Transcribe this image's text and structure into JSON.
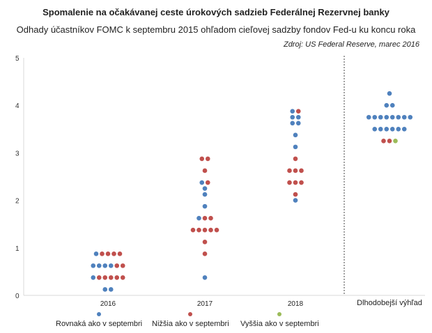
{
  "chart_data": {
    "type": "scatter",
    "title": "Spomalenie na očakávanej ceste úrokových sadzieb Federálnej Rezervnej banky",
    "subtitle": "Odhady účastníkov FOMC k septembru 2015 ohľadom cieľovej sadzby fondov Fed-u ku koncu roka",
    "source": "Zdroj: US Federal Reserve, marec 2016",
    "categories": [
      "2016",
      "2017",
      "2018",
      "Dlhodobejší výhľad"
    ],
    "ylim": [
      0,
      5
    ],
    "yticks": [
      "0",
      "1",
      "2",
      "3",
      "4",
      "5"
    ],
    "grid": false,
    "legend_position": "bottom",
    "colors": {
      "same": "#4f81bd",
      "lower": "#c0504d",
      "higher": "#9bbb59",
      "axis": "#d9d9d9",
      "divider": "#444444"
    },
    "series": [
      {
        "key": "same",
        "name": "Rovnaká ako v septembri",
        "color": "#4f81bd",
        "points": [
          [
            "2016",
            0.125
          ],
          [
            "2016",
            0.125
          ],
          [
            "2016",
            0.375
          ],
          [
            "2016",
            0.625
          ],
          [
            "2016",
            0.625
          ],
          [
            "2016",
            0.625
          ],
          [
            "2016",
            0.625
          ],
          [
            "2016",
            0.875
          ],
          [
            "2017",
            0.375
          ],
          [
            "2017",
            1.625
          ],
          [
            "2017",
            1.875
          ],
          [
            "2017",
            2.125
          ],
          [
            "2017",
            2.25
          ],
          [
            "2017",
            2.375
          ],
          [
            "2018",
            2.0
          ],
          [
            "2018",
            3.125
          ],
          [
            "2018",
            3.375
          ],
          [
            "2018",
            3.625
          ],
          [
            "2018",
            3.625
          ],
          [
            "2018",
            3.75
          ],
          [
            "2018",
            3.75
          ],
          [
            "2018",
            3.875
          ],
          [
            "Dlhodobejší výhľad",
            3.5
          ],
          [
            "Dlhodobejší výhľad",
            3.5
          ],
          [
            "Dlhodobejší výhľad",
            3.5
          ],
          [
            "Dlhodobejší výhľad",
            3.5
          ],
          [
            "Dlhodobejší výhľad",
            3.5
          ],
          [
            "Dlhodobejší výhľad",
            3.5
          ],
          [
            "Dlhodobejší výhľad",
            3.75
          ],
          [
            "Dlhodobejší výhľad",
            3.75
          ],
          [
            "Dlhodobejší výhľad",
            3.75
          ],
          [
            "Dlhodobejší výhľad",
            3.75
          ],
          [
            "Dlhodobejší výhľad",
            3.75
          ],
          [
            "Dlhodobejší výhľad",
            3.75
          ],
          [
            "Dlhodobejší výhľad",
            3.75
          ],
          [
            "Dlhodobejší výhľad",
            3.75
          ],
          [
            "Dlhodobejší výhľad",
            4.0
          ],
          [
            "Dlhodobejší výhľad",
            4.0
          ],
          [
            "Dlhodobejší výhľad",
            4.25
          ]
        ]
      },
      {
        "key": "lower",
        "name": "Nižšia ako v septembri",
        "color": "#c0504d",
        "points": [
          [
            "2016",
            0.375
          ],
          [
            "2016",
            0.375
          ],
          [
            "2016",
            0.375
          ],
          [
            "2016",
            0.375
          ],
          [
            "2016",
            0.375
          ],
          [
            "2016",
            0.625
          ],
          [
            "2016",
            0.625
          ],
          [
            "2016",
            0.875
          ],
          [
            "2016",
            0.875
          ],
          [
            "2016",
            0.875
          ],
          [
            "2016",
            0.875
          ],
          [
            "2017",
            0.875
          ],
          [
            "2017",
            1.125
          ],
          [
            "2017",
            1.375
          ],
          [
            "2017",
            1.375
          ],
          [
            "2017",
            1.375
          ],
          [
            "2017",
            1.375
          ],
          [
            "2017",
            1.375
          ],
          [
            "2017",
            1.625
          ],
          [
            "2017",
            1.625
          ],
          [
            "2017",
            2.375
          ],
          [
            "2017",
            2.625
          ],
          [
            "2017",
            2.875
          ],
          [
            "2017",
            2.875
          ],
          [
            "2018",
            2.125
          ],
          [
            "2018",
            2.375
          ],
          [
            "2018",
            2.375
          ],
          [
            "2018",
            2.375
          ],
          [
            "2018",
            2.625
          ],
          [
            "2018",
            2.625
          ],
          [
            "2018",
            2.625
          ],
          [
            "2018",
            2.875
          ],
          [
            "2018",
            3.875
          ],
          [
            "Dlhodobejší výhľad",
            3.25
          ],
          [
            "Dlhodobejší výhľad",
            3.25
          ]
        ]
      },
      {
        "key": "higher",
        "name": "Vyššia ako v septembri",
        "color": "#9bbb59",
        "points": [
          [
            "Dlhodobejší výhľad",
            3.25
          ]
        ]
      }
    ]
  }
}
